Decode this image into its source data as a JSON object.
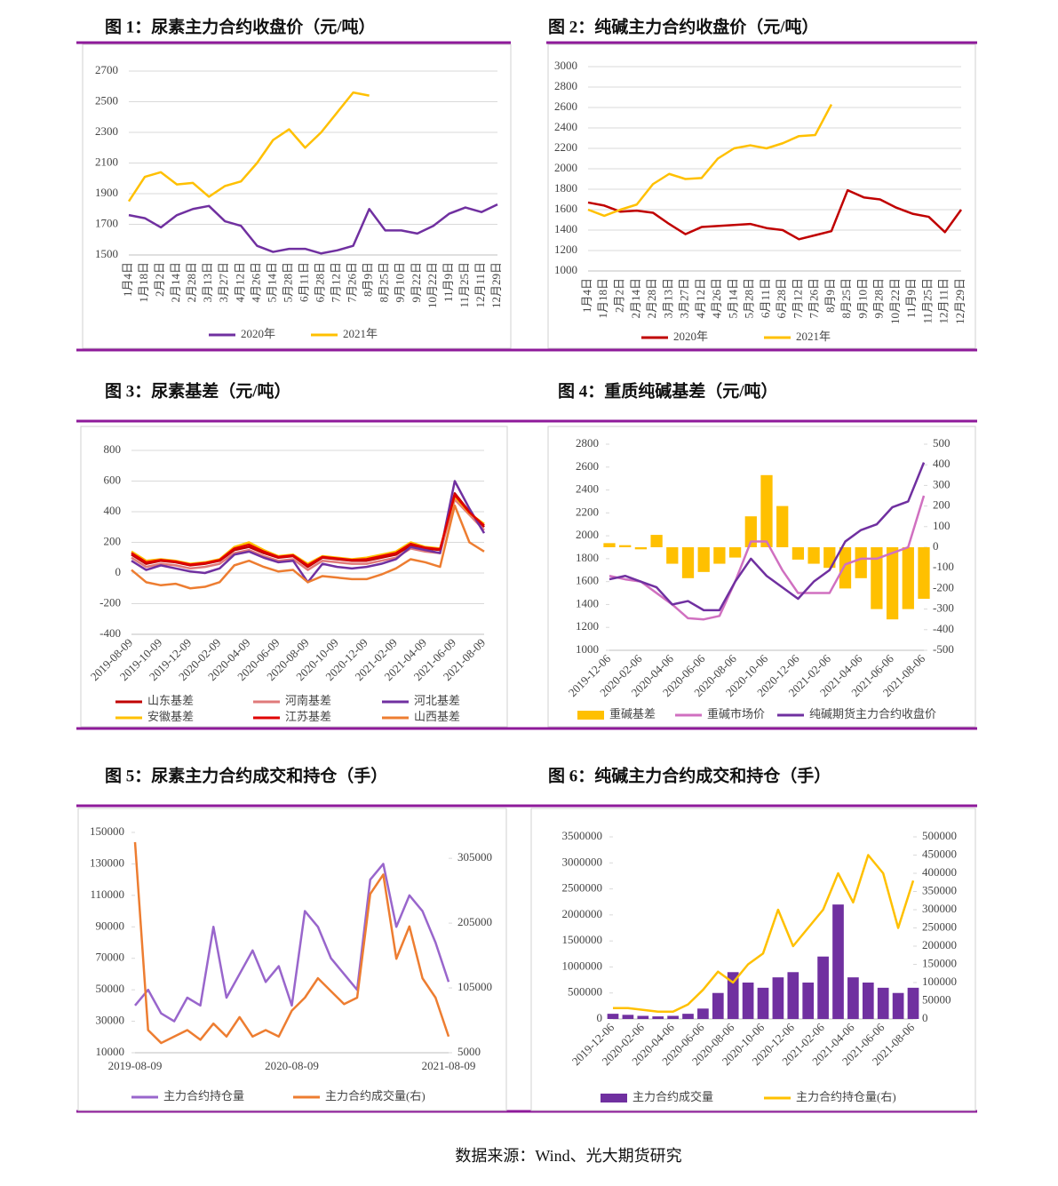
{
  "chart_data": [
    {
      "type": "line",
      "title": "图 1：尿素主力合约收盘价（元/吨）",
      "grid": true,
      "categories": [
        "1月4日",
        "1月18日",
        "2月2日",
        "2月14日",
        "2月28日",
        "3月13日",
        "3月27日",
        "4月12日",
        "4月26日",
        "5月14日",
        "5月28日",
        "6月11日",
        "6月28日",
        "7月12日",
        "7月26日",
        "8月9日",
        "8月25日",
        "9月10日",
        "9月22日",
        "10月22日",
        "11月9日",
        "11月25日",
        "12月11日",
        "12月29日"
      ],
      "ylim": [
        1500,
        2700
      ],
      "yticks": [
        1500,
        1700,
        1900,
        2100,
        2300,
        2500,
        2700
      ],
      "series": [
        {
          "name": "2020年",
          "color": "#7030a0",
          "values": [
            1760,
            1740,
            1680,
            1760,
            1800,
            1820,
            1720,
            1690,
            1560,
            1520,
            1540,
            1540,
            1510,
            1530,
            1560,
            1800,
            1660,
            1660,
            1640,
            1690,
            1770,
            1810,
            1780,
            1830
          ]
        },
        {
          "name": "2021年",
          "color": "#ffc000",
          "values": [
            1850,
            2010,
            2040,
            1960,
            1970,
            1880,
            1950,
            1980,
            2100,
            2250,
            2320,
            2200,
            2300,
            2430,
            2560,
            2540,
            null,
            null,
            null,
            null,
            null,
            null,
            null,
            null
          ]
        }
      ]
    },
    {
      "type": "line",
      "title": "图 2：纯碱主力合约收盘价（元/吨）",
      "grid": true,
      "categories": [
        "1月4日",
        "1月18日",
        "2月2日",
        "2月14日",
        "2月28日",
        "3月13日",
        "3月27日",
        "4月12日",
        "4月26日",
        "5月14日",
        "5月28日",
        "6月11日",
        "6月28日",
        "7月12日",
        "7月26日",
        "8月9日",
        "8月25日",
        "9月10日",
        "9月28日",
        "10月22日",
        "11月9日",
        "11月25日",
        "12月11日",
        "12月29日"
      ],
      "ylim": [
        1000,
        3000
      ],
      "yticks": [
        1000,
        1200,
        1400,
        1600,
        1800,
        2000,
        2200,
        2400,
        2600,
        2800,
        3000
      ],
      "series": [
        {
          "name": "2020年",
          "color": "#c00000",
          "values": [
            1670,
            1640,
            1580,
            1590,
            1570,
            1460,
            1360,
            1430,
            1440,
            1450,
            1460,
            1420,
            1400,
            1310,
            1350,
            1390,
            1790,
            1720,
            1700,
            1620,
            1560,
            1530,
            1380,
            1600
          ]
        },
        {
          "name": "2021年",
          "color": "#ffc000",
          "values": [
            1600,
            1540,
            1600,
            1650,
            1850,
            1950,
            1900,
            1910,
            2100,
            2200,
            2230,
            2200,
            2250,
            2320,
            2330,
            2630,
            null,
            null,
            null,
            null,
            null,
            null,
            null,
            null
          ]
        }
      ]
    },
    {
      "type": "line",
      "title": "图 3：尿素基差（元/吨）",
      "grid": true,
      "categories": [
        "2019-08-09",
        null,
        "2019-10-09",
        null,
        "2019-12-09",
        null,
        "2020-02-09",
        null,
        "2020-04-09",
        null,
        "2020-06-09",
        null,
        "2020-08-09",
        null,
        "2020-10-09",
        null,
        "2020-12-09",
        null,
        "2021-02-09",
        null,
        "2021-04-09",
        null,
        "2021-06-09",
        null,
        "2021-08-09"
      ],
      "ylim": [
        -400,
        800
      ],
      "yticks": [
        -400,
        -200,
        0,
        200,
        400,
        600,
        800
      ],
      "series": [
        {
          "name": "山东基差",
          "color": "#c00000",
          "values": [
            120,
            60,
            80,
            70,
            50,
            60,
            80,
            150,
            170,
            130,
            100,
            110,
            40,
            100,
            90,
            80,
            80,
            100,
            120,
            180,
            160,
            150,
            520,
            400,
            300
          ]
        },
        {
          "name": "河南基差",
          "color": "#e07a7a",
          "values": [
            100,
            40,
            60,
            50,
            30,
            40,
            60,
            130,
            150,
            110,
            80,
            90,
            20,
            80,
            70,
            60,
            60,
            80,
            100,
            160,
            140,
            130,
            480,
            380,
            280
          ]
        },
        {
          "name": "河北基差",
          "color": "#7030a0",
          "values": [
            80,
            20,
            50,
            30,
            10,
            0,
            30,
            120,
            140,
            100,
            70,
            80,
            -60,
            60,
            40,
            30,
            40,
            60,
            90,
            170,
            150,
            130,
            600,
            420,
            260
          ]
        },
        {
          "name": "安徽基差",
          "color": "#ffc000",
          "values": [
            140,
            80,
            90,
            80,
            60,
            70,
            90,
            170,
            200,
            150,
            110,
            120,
            60,
            110,
            100,
            90,
            100,
            120,
            140,
            200,
            170,
            160,
            500,
            390,
            320
          ]
        },
        {
          "name": "江苏基差",
          "color": "#e00000",
          "values": [
            130,
            70,
            85,
            75,
            55,
            65,
            85,
            160,
            185,
            140,
            105,
            115,
            50,
            105,
            95,
            85,
            90,
            110,
            130,
            190,
            165,
            155,
            510,
            395,
            310
          ]
        },
        {
          "name": "山西基差",
          "color": "#ed7d31",
          "values": [
            20,
            -60,
            -80,
            -70,
            -100,
            -90,
            -60,
            50,
            80,
            40,
            10,
            20,
            -60,
            -20,
            -30,
            -40,
            -40,
            -10,
            30,
            90,
            70,
            40,
            440,
            200,
            140
          ]
        }
      ]
    },
    {
      "type": "line",
      "title": "图 4：重质纯碱基差（元/吨）",
      "grid": false,
      "categories": [
        "2019-12-06",
        null,
        "2020-02-06",
        null,
        "2020-04-06",
        null,
        "2020-06-06",
        null,
        "2020-08-06",
        null,
        "2020-10-06",
        null,
        "2020-12-06",
        null,
        "2021-02-06",
        null,
        "2021-04-06",
        null,
        "2021-06-06",
        null,
        "2021-08-06"
      ],
      "ylim": [
        1000,
        2800
      ],
      "yticks": [
        1000,
        1200,
        1400,
        1600,
        1800,
        2000,
        2200,
        2400,
        2600,
        2800
      ],
      "y2lim": [
        -500,
        500
      ],
      "y2ticks": [
        -500,
        -400,
        -300,
        -200,
        -100,
        0,
        100,
        200,
        300,
        400,
        500
      ],
      "series": [
        {
          "name": "重碱基差",
          "type": "bar",
          "axis": "y2",
          "color": "#ffc000",
          "values": [
            20,
            10,
            -10,
            60,
            -80,
            -150,
            -120,
            -80,
            -50,
            150,
            350,
            200,
            -60,
            -80,
            -100,
            -200,
            -150,
            -300,
            -350,
            -300,
            -250
          ]
        },
        {
          "name": "重碱市场价",
          "color": "#d070c0",
          "values": [
            1650,
            1620,
            1600,
            1500,
            1400,
            1280,
            1270,
            1300,
            1600,
            1950,
            1950,
            1700,
            1500,
            1500,
            1500,
            1750,
            1800,
            1800,
            1850,
            1900,
            2350
          ]
        },
        {
          "name": "纯碱期货主力合约收盘价",
          "color": "#7030a0",
          "values": [
            1620,
            1650,
            1600,
            1550,
            1400,
            1430,
            1350,
            1350,
            1600,
            1800,
            1650,
            1550,
            1450,
            1600,
            1700,
            1950,
            2050,
            2100,
            2250,
            2300,
            2640
          ]
        }
      ]
    },
    {
      "type": "line",
      "title": "图 5：尿素主力合约成交和持仓（手）",
      "grid": false,
      "categories": [
        "2019-08-09",
        null,
        null,
        null,
        null,
        null,
        null,
        null,
        null,
        null,
        null,
        null,
        "2020-08-09",
        null,
        null,
        null,
        null,
        null,
        null,
        null,
        null,
        null,
        null,
        null,
        "2021-08-09"
      ],
      "ylim": [
        10000,
        150000
      ],
      "yticks": [
        10000,
        30000,
        50000,
        70000,
        90000,
        110000,
        130000,
        150000
      ],
      "y2lim": [
        5000,
        345000
      ],
      "y2ticks": [
        5000,
        105000,
        205000,
        305000
      ],
      "series": [
        {
          "name": "主力合约持仓量",
          "color": "#9966cc",
          "values": [
            40000,
            50000,
            35000,
            30000,
            45000,
            40000,
            90000,
            45000,
            60000,
            75000,
            55000,
            65000,
            40000,
            100000,
            90000,
            70000,
            60000,
            50000,
            120000,
            130000,
            90000,
            110000,
            100000,
            80000,
            55000
          ]
        },
        {
          "name": "主力合约成交量(右)",
          "axis": "y2",
          "color": "#ed7d31",
          "values": [
            330000,
            40000,
            20000,
            30000,
            40000,
            25000,
            50000,
            30000,
            60000,
            30000,
            40000,
            30000,
            70000,
            90000,
            120000,
            100000,
            80000,
            90000,
            250000,
            280000,
            150000,
            200000,
            120000,
            90000,
            30000
          ]
        }
      ]
    },
    {
      "type": "line",
      "title": "图 6：纯碱主力合约成交和持仓（手）",
      "grid": false,
      "categories": [
        "2019-12-06",
        null,
        "2020-02-06",
        null,
        "2020-04-06",
        null,
        "2020-06-06",
        null,
        "2020-08-06",
        null,
        "2020-10-06",
        null,
        "2020-12-06",
        null,
        "2021-02-06",
        null,
        "2021-04-06",
        null,
        "2021-06-06",
        null,
        "2021-08-06"
      ],
      "ylim": [
        0,
        3500000
      ],
      "yticks": [
        0,
        500000,
        1000000,
        1500000,
        2000000,
        2500000,
        3000000,
        3500000
      ],
      "y2lim": [
        0,
        500000
      ],
      "y2ticks": [
        0,
        50000,
        100000,
        150000,
        200000,
        250000,
        300000,
        350000,
        400000,
        450000,
        500000
      ],
      "series": [
        {
          "name": "主力合约成交量",
          "type": "bar",
          "color": "#7030a0",
          "values": [
            100000,
            80000,
            60000,
            50000,
            60000,
            100000,
            200000,
            500000,
            900000,
            700000,
            600000,
            800000,
            900000,
            700000,
            1200000,
            2200000,
            800000,
            700000,
            600000,
            500000,
            600000
          ]
        },
        {
          "name": "主力合约持仓量(右)",
          "axis": "y2",
          "color": "#ffc000",
          "values": [
            30000,
            30000,
            25000,
            20000,
            20000,
            40000,
            80000,
            130000,
            100000,
            150000,
            180000,
            300000,
            200000,
            250000,
            300000,
            400000,
            320000,
            450000,
            400000,
            250000,
            380000
          ]
        }
      ]
    }
  ],
  "source": "数据来源：Wind、光大期货研究"
}
